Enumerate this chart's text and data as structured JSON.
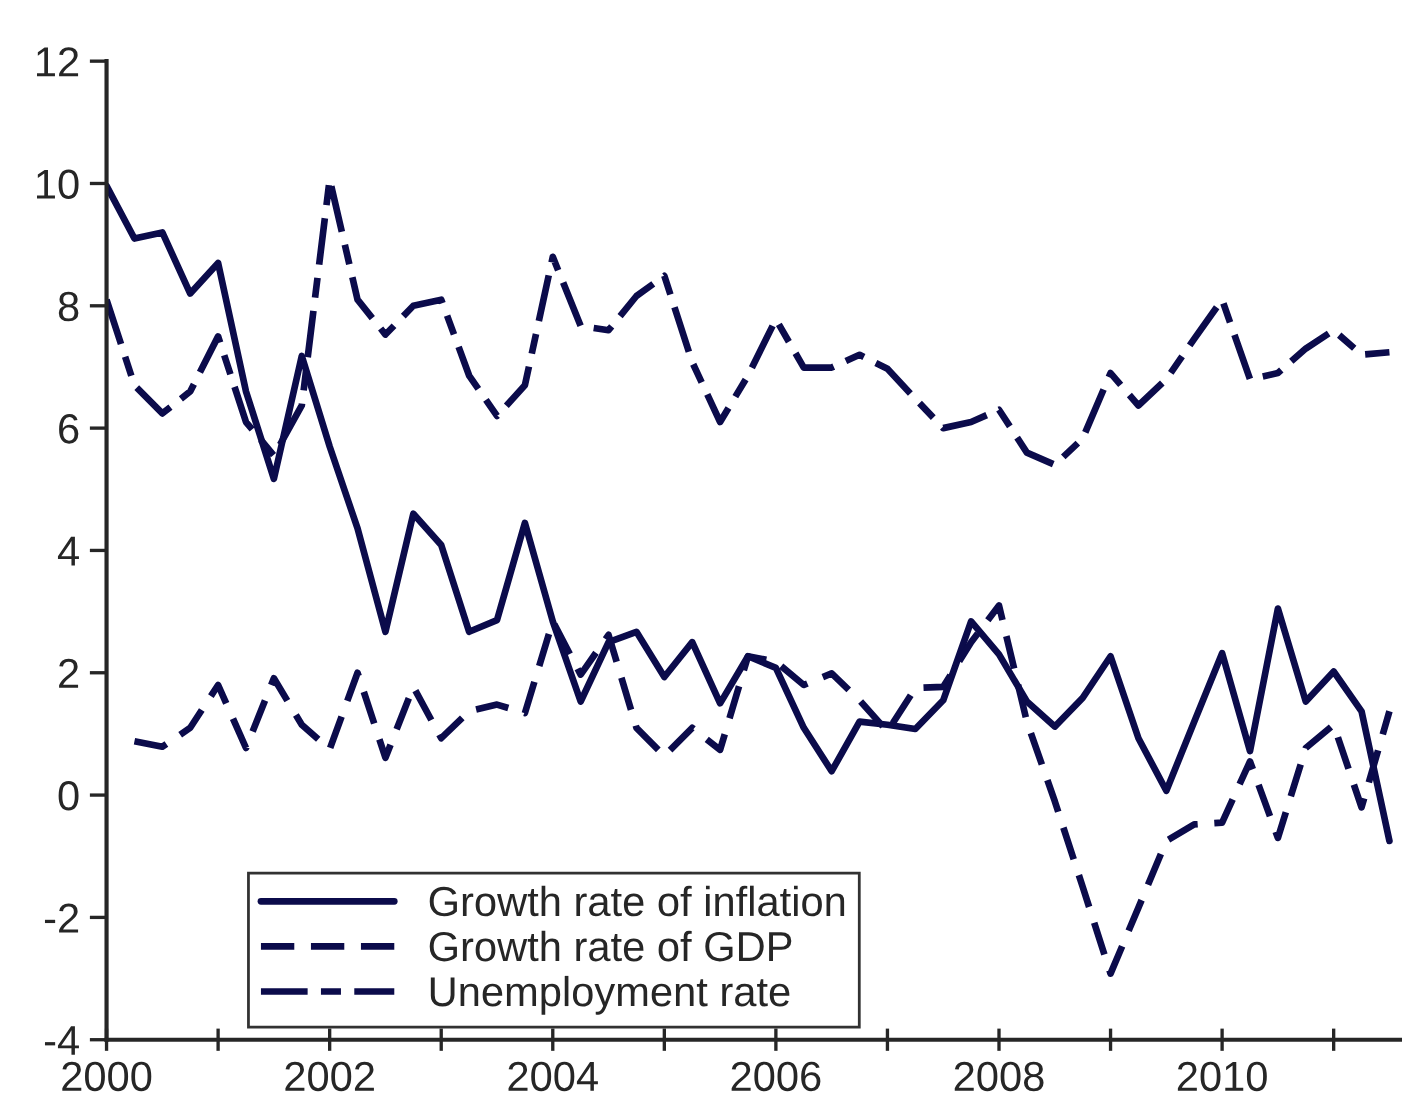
{
  "chart_data": {
    "type": "line",
    "x": [
      2000.0,
      2000.25,
      2000.5,
      2000.75,
      2001.0,
      2001.25,
      2001.5,
      2001.75,
      2002.0,
      2002.25,
      2002.5,
      2002.75,
      2003.0,
      2003.25,
      2003.5,
      2003.75,
      2004.0,
      2004.25,
      2004.5,
      2004.75,
      2005.0,
      2005.25,
      2005.5,
      2005.75,
      2006.0,
      2006.25,
      2006.5,
      2006.75,
      2007.0,
      2007.25,
      2007.5,
      2007.75,
      2008.0,
      2008.25,
      2008.5,
      2008.75,
      2009.0,
      2009.25,
      2009.5,
      2009.75,
      2010.0,
      2010.25,
      2010.5,
      2010.75,
      2011.0,
      2011.25,
      2011.5
    ],
    "series": [
      {
        "name": "Growth rate of inflation",
        "color": "#0b0b4b",
        "line_style": "solid",
        "values": [
          9.96,
          9.1,
          9.2,
          8.2,
          8.7,
          6.6,
          5.17,
          7.18,
          5.7,
          4.36,
          2.67,
          4.6,
          4.09,
          2.67,
          2.86,
          4.45,
          2.84,
          1.53,
          2.5,
          2.67,
          1.93,
          2.5,
          1.5,
          2.27,
          2.08,
          1.1,
          0.39,
          1.2,
          1.15,
          1.08,
          1.55,
          2.84,
          2.3,
          1.53,
          1.12,
          1.59,
          2.27,
          0.93,
          0.07,
          1.2,
          2.32,
          0.72,
          3.05,
          1.53,
          2.02,
          1.37,
          -0.75
        ]
      },
      {
        "name": "Growth rate of GDP",
        "color": "#0b0b4b",
        "line_style": "dashed",
        "values": [
          null,
          0.88,
          0.79,
          1.1,
          1.8,
          0.77,
          1.91,
          1.15,
          0.75,
          2.0,
          0.61,
          1.77,
          0.93,
          1.37,
          1.48,
          1.34,
          2.84,
          1.97,
          2.62,
          1.1,
          0.64,
          1.1,
          0.74,
          2.27,
          2.18,
          1.8,
          1.99,
          1.55,
          1.04,
          1.75,
          1.77,
          2.5,
          3.1,
          1.2,
          -0.1,
          -1.5,
          -2.92,
          -1.84,
          -0.75,
          -0.48,
          -0.45,
          0.55,
          -0.7,
          0.77,
          1.15,
          -0.2,
          1.37
        ]
      },
      {
        "name": "Unemployment rate",
        "color": "#0b0b4b",
        "line_style": "dashdot",
        "values": [
          8.1,
          6.7,
          6.24,
          6.6,
          7.5,
          6.1,
          5.55,
          6.37,
          10.07,
          8.1,
          7.53,
          8.0,
          8.1,
          6.86,
          6.2,
          6.7,
          8.8,
          7.67,
          7.6,
          8.16,
          8.49,
          7.08,
          6.1,
          6.86,
          7.78,
          6.99,
          6.99,
          7.2,
          6.97,
          6.48,
          6.0,
          6.1,
          6.3,
          5.6,
          5.4,
          5.83,
          6.9,
          6.37,
          6.8,
          7.46,
          8.1,
          6.8,
          6.9,
          7.3,
          7.6,
          7.2,
          7.24
        ]
      }
    ],
    "xlim": [
      2000,
      2011.6
    ],
    "xticks": [
      2000,
      {
        "value": 2001,
        "label": null
      },
      2002,
      {
        "value": 2003,
        "label": null
      },
      2004,
      {
        "value": 2005,
        "label": null
      },
      2006,
      {
        "value": 2007,
        "label": null
      },
      2008,
      {
        "value": 2009,
        "label": null
      },
      2010,
      {
        "value": 2011,
        "label": null
      }
    ],
    "ylim": [
      -4,
      12
    ],
    "yticks": [
      -4,
      -2,
      0,
      2,
      4,
      6,
      8,
      10,
      12
    ],
    "grid": false,
    "legend": "bottom left"
  }
}
